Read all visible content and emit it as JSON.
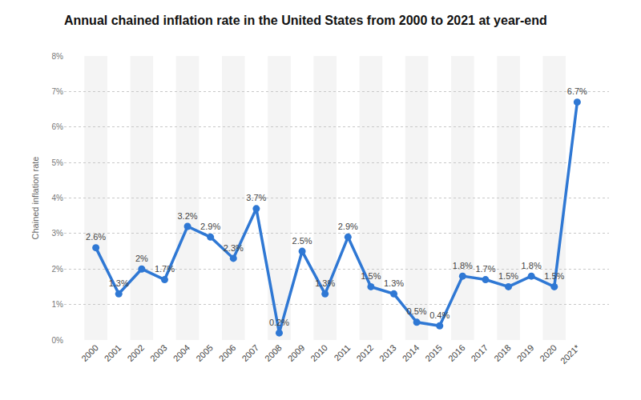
{
  "chart_data": {
    "type": "line",
    "title": "Annual chained inflation rate in the United States from 2000 to 2021 at year-end",
    "y_label": "Chained inflation rate",
    "categories": [
      "2000",
      "2001",
      "2002",
      "2003",
      "2004",
      "2005",
      "2006",
      "2007",
      "2008",
      "2009",
      "2010",
      "2011",
      "2012",
      "2013",
      "2014",
      "2015",
      "2016",
      "2017",
      "2018",
      "2019",
      "2020",
      "2021*"
    ],
    "values": [
      2.6,
      1.3,
      2,
      1.7,
      3.2,
      2.9,
      2.3,
      3.7,
      0.2,
      2.5,
      1.3,
      2.9,
      1.5,
      1.3,
      0.5,
      0.4,
      1.8,
      1.7,
      1.5,
      1.8,
      1.5,
      6.7
    ],
    "value_labels": [
      "2.6%",
      "1.3%",
      "2%",
      "1.7%",
      "3.2%",
      "2.9%",
      "2.3%",
      "3.7%",
      "0.2%",
      "2.5%",
      "1.3%",
      "2.9%",
      "1.5%",
      "1.3%",
      "0.5%",
      "0.4%",
      "1.8%",
      "1.7%",
      "1.5%",
      "1.8%",
      "1.5%",
      "6.7%"
    ],
    "color": "#2f78d4",
    "marker": "circle",
    "ylim": [
      0,
      8
    ],
    "yticks": [
      {
        "value": 0,
        "label": "0%"
      },
      {
        "value": 1,
        "label": "1%"
      },
      {
        "value": 2,
        "label": "2%"
      },
      {
        "value": 3,
        "label": "3%"
      },
      {
        "value": 4,
        "label": "4%"
      },
      {
        "value": 5,
        "label": "5%"
      },
      {
        "value": 6,
        "label": "6%"
      },
      {
        "value": 7,
        "label": "7%"
      },
      {
        "value": 8,
        "label": "8%"
      }
    ],
    "grid": true,
    "data_labels": true
  }
}
